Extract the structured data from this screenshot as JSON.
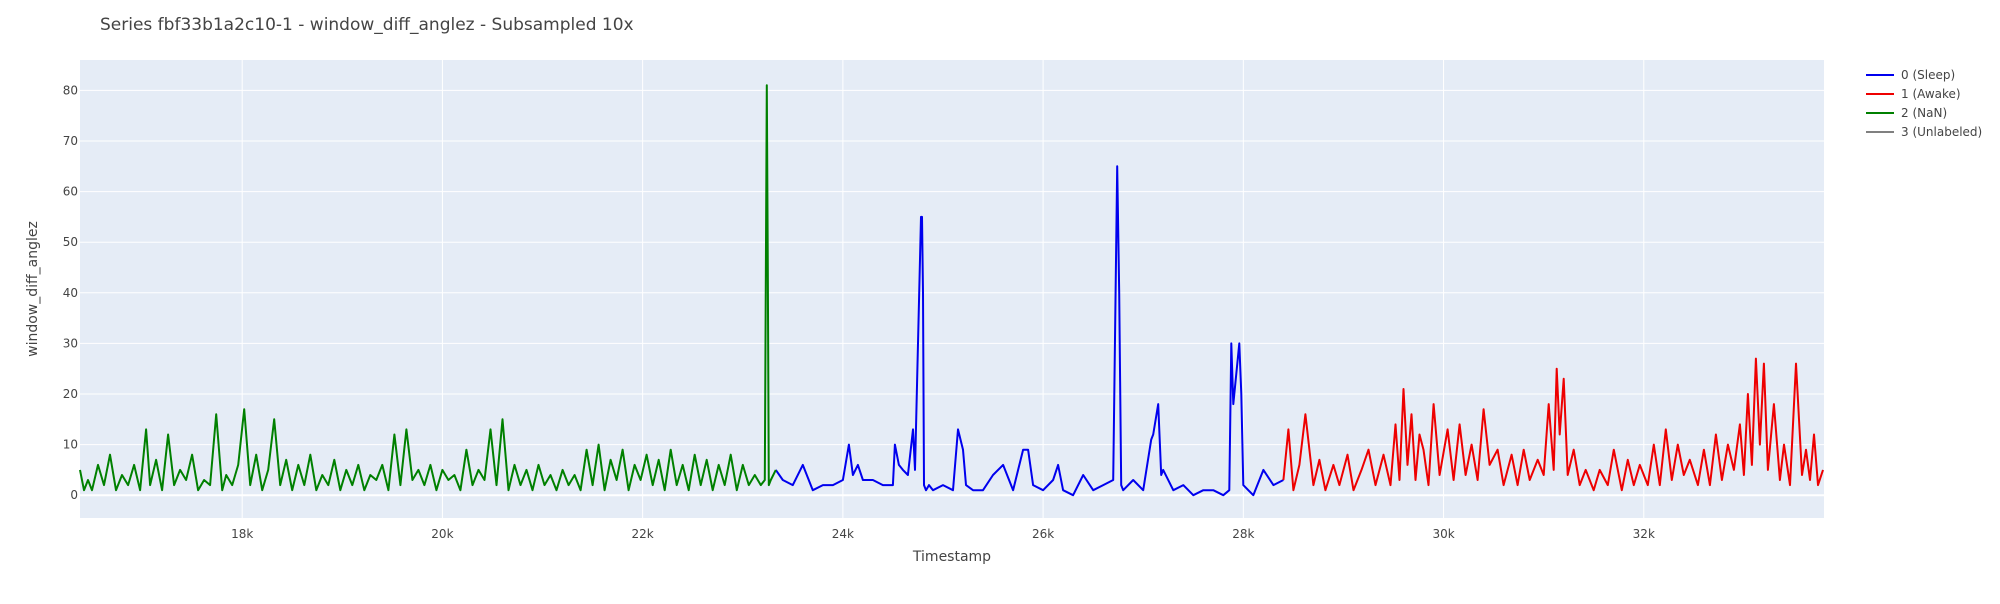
{
  "chart_data": {
    "type": "line",
    "title": "Series fbf33b1a2c10-1 - window_diff_anglez - Subsampled 10x",
    "xlabel": "Timestamp",
    "ylabel": "window_diff_anglez",
    "xlim": [
      16380,
      33800
    ],
    "ylim": [
      -4.5,
      86
    ],
    "x_ticks": [
      18000,
      20000,
      22000,
      24000,
      26000,
      28000,
      30000,
      32000
    ],
    "x_tick_labels": [
      "18k",
      "20k",
      "22k",
      "24k",
      "26k",
      "28k",
      "30k",
      "32k"
    ],
    "y_ticks": [
      0,
      10,
      20,
      30,
      40,
      50,
      60,
      70,
      80
    ],
    "y_tick_labels": [
      "0",
      "10",
      "20",
      "30",
      "40",
      "50",
      "60",
      "70",
      "80"
    ],
    "grid": true,
    "legend_position": "top-right",
    "plot_background": "#e5ecf6",
    "series": [
      {
        "name": "0 (Sleep)",
        "color": "#0000ee",
        "x": [
          23330,
          23400,
          23500,
          23600,
          23700,
          23800,
          23900,
          24000,
          24060,
          24100,
          24150,
          24200,
          24300,
          24400,
          24500,
          24520,
          24560,
          24600,
          24650,
          24700,
          24720,
          24780,
          24790,
          24800,
          24810,
          24830,
          24860,
          24900,
          25000,
          25100,
          25150,
          25200,
          25230,
          25300,
          25400,
          25500,
          25600,
          25700,
          25800,
          25850,
          25900,
          26000,
          26100,
          26150,
          26200,
          26300,
          26400,
          26500,
          26600,
          26700,
          26740,
          26760,
          26780,
          26800,
          26900,
          27000,
          27080,
          27100,
          27150,
          27180,
          27200,
          27300,
          27400,
          27500,
          27600,
          27700,
          27800,
          27860,
          27880,
          27900,
          27960,
          27980,
          28000,
          28050,
          28100,
          28200,
          28300,
          28400
        ],
        "y": [
          5,
          3,
          2,
          6,
          1,
          2,
          2,
          3,
          10,
          4,
          6,
          3,
          3,
          2,
          2,
          10,
          6,
          5,
          4,
          13,
          5,
          55,
          55,
          40,
          2,
          1,
          2,
          1,
          2,
          1,
          13,
          9,
          2,
          1,
          1,
          4,
          6,
          1,
          9,
          9,
          2,
          1,
          3,
          6,
          1,
          0,
          4,
          1,
          2,
          3,
          65,
          40,
          2,
          1,
          3,
          1,
          11,
          12,
          18,
          4,
          5,
          1,
          2,
          0,
          1,
          1,
          0,
          1,
          30,
          18,
          30,
          20,
          2,
          1,
          0,
          5,
          2,
          3
        ]
      },
      {
        "name": "1 (Awake)",
        "color": "#ee0000",
        "x": [
          28400,
          28450,
          28500,
          28560,
          28620,
          28700,
          28760,
          28820,
          28900,
          28960,
          29040,
          29100,
          29180,
          29250,
          29320,
          29400,
          29470,
          29520,
          29560,
          29600,
          29640,
          29680,
          29720,
          29760,
          29800,
          29850,
          29900,
          29960,
          30040,
          30100,
          30160,
          30220,
          30280,
          30340,
          30400,
          30460,
          30540,
          30600,
          30680,
          30740,
          30800,
          30860,
          30940,
          31000,
          31050,
          31100,
          31130,
          31160,
          31200,
          31240,
          31300,
          31360,
          31420,
          31500,
          31560,
          31640,
          31700,
          31780,
          31840,
          31900,
          31960,
          32040,
          32100,
          32160,
          32220,
          32280,
          32340,
          32400,
          32460,
          32540,
          32600,
          32660,
          32720,
          32780,
          32840,
          32900,
          32960,
          33000,
          33040,
          33080,
          33120,
          33160,
          33200,
          33240,
          33300,
          33360,
          33400,
          33460,
          33520,
          33580,
          33620,
          33660,
          33700,
          33740,
          33790
        ],
        "y": [
          3,
          13,
          1,
          6,
          16,
          2,
          7,
          1,
          6,
          2,
          8,
          1,
          5,
          9,
          2,
          8,
          2,
          14,
          3,
          21,
          6,
          16,
          3,
          12,
          9,
          2,
          18,
          4,
          13,
          3,
          14,
          4,
          10,
          3,
          17,
          6,
          9,
          2,
          8,
          2,
          9,
          3,
          7,
          4,
          18,
          5,
          25,
          12,
          23,
          4,
          9,
          2,
          5,
          1,
          5,
          2,
          9,
          1,
          7,
          2,
          6,
          2,
          10,
          2,
          13,
          3,
          10,
          4,
          7,
          2,
          9,
          2,
          12,
          3,
          10,
          5,
          14,
          4,
          20,
          6,
          27,
          10,
          26,
          5,
          18,
          3,
          10,
          2,
          26,
          4,
          9,
          3,
          12,
          2,
          5
        ]
      },
      {
        "name": "2 (NaN)",
        "color": "#008000",
        "x": [
          16380,
          16420,
          16460,
          16500,
          16560,
          16620,
          16680,
          16740,
          16800,
          16860,
          16920,
          16980,
          17040,
          17080,
          17140,
          17200,
          17260,
          17320,
          17380,
          17440,
          17500,
          17560,
          17620,
          17680,
          17740,
          17800,
          17840,
          17900,
          17960,
          18020,
          18080,
          18140,
          18200,
          18260,
          18320,
          18380,
          18440,
          18500,
          18560,
          18620,
          18680,
          18740,
          18800,
          18860,
          18920,
          18980,
          19040,
          19100,
          19160,
          19220,
          19280,
          19340,
          19400,
          19460,
          19520,
          19580,
          19640,
          19700,
          19760,
          19820,
          19880,
          19940,
          20000,
          20060,
          20120,
          20180,
          20240,
          20300,
          20360,
          20420,
          20480,
          20540,
          20600,
          20660,
          20720,
          20780,
          20840,
          20900,
          20960,
          21020,
          21080,
          21140,
          21200,
          21260,
          21320,
          21380,
          21440,
          21500,
          21560,
          21620,
          21680,
          21740,
          21800,
          21860,
          21920,
          21980,
          22040,
          22100,
          22160,
          22220,
          22280,
          22340,
          22400,
          22460,
          22520,
          22580,
          22640,
          22700,
          22760,
          22820,
          22880,
          22940,
          23000,
          23060,
          23120,
          23180,
          23220,
          23240,
          23250,
          23260,
          23280,
          23330
        ],
        "y": [
          5,
          1,
          3,
          1,
          6,
          2,
          8,
          1,
          4,
          2,
          6,
          1,
          13,
          2,
          7,
          1,
          12,
          2,
          5,
          3,
          8,
          1,
          3,
          2,
          16,
          1,
          4,
          2,
          6,
          17,
          2,
          8,
          1,
          5,
          15,
          2,
          7,
          1,
          6,
          2,
          8,
          1,
          4,
          2,
          7,
          1,
          5,
          2,
          6,
          1,
          4,
          3,
          6,
          1,
          12,
          2,
          13,
          3,
          5,
          2,
          6,
          1,
          5,
          3,
          4,
          1,
          9,
          2,
          5,
          3,
          13,
          2,
          15,
          1,
          6,
          2,
          5,
          1,
          6,
          2,
          4,
          1,
          5,
          2,
          4,
          1,
          9,
          2,
          10,
          1,
          7,
          3,
          9,
          1,
          6,
          3,
          8,
          2,
          7,
          1,
          9,
          2,
          6,
          1,
          8,
          2,
          7,
          1,
          6,
          2,
          8,
          1,
          6,
          2,
          4,
          2,
          3,
          81,
          45,
          2,
          3,
          5
        ]
      },
      {
        "name": "3 (Unlabeled)",
        "color": "#808080",
        "x": [],
        "y": []
      }
    ]
  }
}
